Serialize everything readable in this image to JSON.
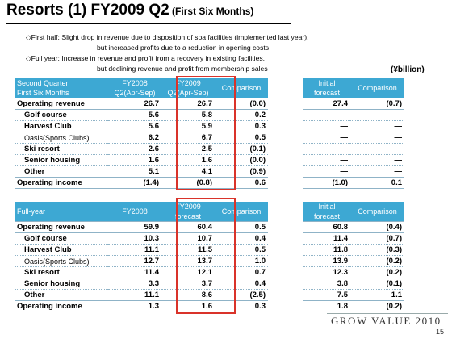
{
  "title": {
    "main": "Resorts (1)   FY2009 Q2",
    "sub": " (First Six Months)"
  },
  "notes": {
    "line1": "◇First half: Slight drop in revenue due to disposition of spa facilities (implemented last year),",
    "line2": "but increased profits due to a reduction in opening costs",
    "line3": "◇Full year: Increase in revenue and profit from a recovery in existing facilities,",
    "line4": "but declining revenue and profit from membership sales"
  },
  "unit": "(¥billion)",
  "q2_table": {
    "headers": {
      "label_line1": "Second Quarter",
      "label_line2": "First Six Months",
      "col1_line1": "FY2008",
      "col1_line2": "Q2(Apr-Sep)",
      "col2_line1": "FY2009",
      "col2_line2": "Q2(Apr-Sep)",
      "col3": "Comparison",
      "col4_line1": "Initial",
      "col4_line2": "forecast",
      "col5": "Comparison"
    },
    "rows": [
      {
        "label": "Operating revenue",
        "v1": "26.7",
        "v2": "26.7",
        "v3": "(0.0)",
        "v4": "27.4",
        "v5": "(0.7)"
      },
      {
        "label": "Golf course",
        "v1": "5.6",
        "v2": "5.8",
        "v3": "0.2",
        "v4": "—",
        "v5": "—"
      },
      {
        "label": "Harvest Club",
        "v1": "5.6",
        "v2": "5.9",
        "v3": "0.3",
        "v4": "—",
        "v5": "—"
      },
      {
        "label": "Oasis(Sports Clubs)",
        "v1": "6.2",
        "v2": "6.7",
        "v3": "0.5",
        "v4": "—",
        "v5": "—"
      },
      {
        "label": "Ski resort",
        "v1": "2.6",
        "v2": "2.5",
        "v3": "(0.1)",
        "v4": "—",
        "v5": "—"
      },
      {
        "label": "Senior housing",
        "v1": "1.6",
        "v2": "1.6",
        "v3": "(0.0)",
        "v4": "—",
        "v5": "—"
      },
      {
        "label": "Other",
        "v1": "5.1",
        "v2": "4.1",
        "v3": "(0.9)",
        "v4": "—",
        "v5": "—"
      },
      {
        "label": "Operating income",
        "v1": "(1.4)",
        "v2": "(0.8)",
        "v3": "0.6",
        "v4": "(1.0)",
        "v5": "0.1"
      }
    ]
  },
  "fy_table": {
    "headers": {
      "label": "Full-year",
      "col1": "FY2008",
      "col2_line1": "FY2009",
      "col2_line2": "forecast",
      "col3": "Comparison",
      "col4_line1": "Initial",
      "col4_line2": "forecast",
      "col5": "Comparison"
    },
    "rows": [
      {
        "label": "Operating revenue",
        "v1": "59.9",
        "v2": "60.4",
        "v3": "0.5",
        "v4": "60.8",
        "v5": "(0.4)"
      },
      {
        "label": "Golf course",
        "v1": "10.3",
        "v2": "10.7",
        "v3": "0.4",
        "v4": "11.4",
        "v5": "(0.7)"
      },
      {
        "label": "Harvest Club",
        "v1": "11.1",
        "v2": "11.5",
        "v3": "0.5",
        "v4": "11.8",
        "v5": "(0.3)"
      },
      {
        "label": "Oasis(Sports Clubs)",
        "v1": "12.7",
        "v2": "13.7",
        "v3": "1.0",
        "v4": "13.9",
        "v5": "(0.2)"
      },
      {
        "label": "Ski resort",
        "v1": "11.4",
        "v2": "12.1",
        "v3": "0.7",
        "v4": "12.3",
        "v5": "(0.2)"
      },
      {
        "label": "Senior housing",
        "v1": "3.3",
        "v2": "3.7",
        "v3": "0.4",
        "v4": "3.8",
        "v5": "(0.1)"
      },
      {
        "label": "Other",
        "v1": "11.1",
        "v2": "8.6",
        "v3": "(2.5)",
        "v4": "7.5",
        "v5": "1.1"
      },
      {
        "label": "Operating income",
        "v1": "1.3",
        "v2": "1.6",
        "v3": "0.3",
        "v4": "1.8",
        "v5": "(0.2)"
      }
    ]
  },
  "colors": {
    "header_bg": "#3da8d3",
    "highlight": "#d9332a"
  },
  "footer": {
    "brand": "GROW VALUE 2010",
    "page": "15"
  }
}
